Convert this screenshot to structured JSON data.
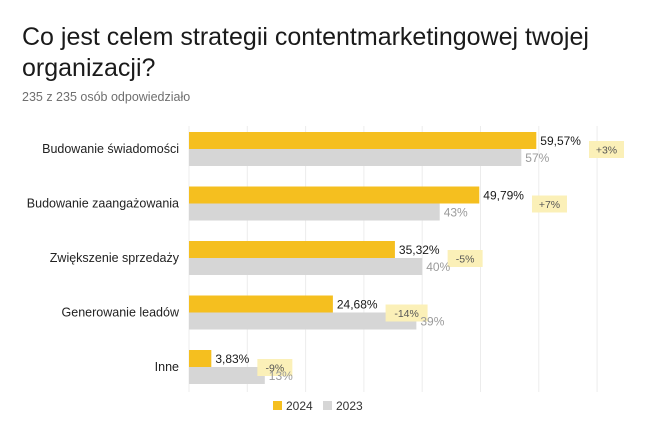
{
  "title": "Co jest celem strategii contentmarketingowej twojej organizacji?",
  "subtitle": "235 z 235 osób odpowiedziało",
  "chart_data": {
    "type": "bar",
    "orientation": "horizontal",
    "categories": [
      "Budowanie świadomości",
      "Budowanie zaangażowania",
      "Zwiększenie sprzedaży",
      "Generowanie leadów",
      "Inne"
    ],
    "series": [
      {
        "name": "2024",
        "values": [
          59.57,
          49.79,
          35.32,
          24.68,
          3.83
        ],
        "labels": [
          "59,57%",
          "49,79%",
          "35,32%",
          "24,68%",
          "3,83%"
        ],
        "color": "#F5BF1F"
      },
      {
        "name": "2023",
        "values": [
          57,
          43,
          40,
          39,
          13
        ],
        "labels": [
          "57%",
          "43%",
          "40%",
          "39%",
          "13%"
        ],
        "color": "#D6D6D6"
      }
    ],
    "change_labels": [
      "+3%",
      "+7%",
      "-5%",
      "-14%",
      "-9%"
    ],
    "change_badge_color": "#FBF0B8",
    "xlim": [
      0,
      70
    ],
    "gridlines": true,
    "legend": [
      "2024",
      "2023"
    ],
    "legend_position": "bottom-center"
  }
}
